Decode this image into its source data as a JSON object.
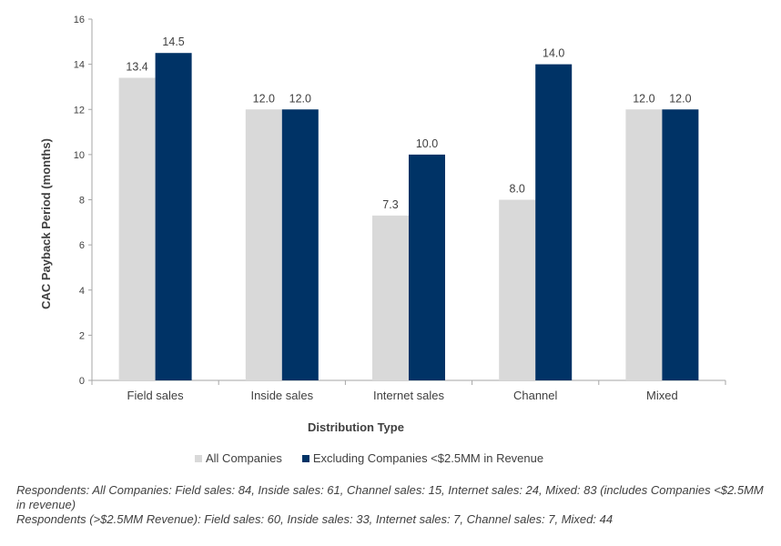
{
  "chart_data": {
    "type": "bar",
    "categories": [
      "Field sales",
      "Inside sales",
      "Internet sales",
      "Channel",
      "Mixed"
    ],
    "series": [
      {
        "name": "All Companies",
        "color": "#d9d9d9",
        "values": [
          13.4,
          12.0,
          7.3,
          8.0,
          12.0
        ],
        "labels": [
          "13.4",
          "12.0",
          "7.3",
          "8.0",
          "12.0"
        ]
      },
      {
        "name": "Excluding Companies <$2.5MM in Revenue",
        "color": "#003366",
        "values": [
          14.5,
          12.0,
          10.0,
          14.0,
          12.0
        ],
        "labels": [
          "14.5",
          "12.0",
          "10.0",
          "14.0",
          "12.0"
        ]
      }
    ],
    "xlabel": "Distribution Type",
    "ylabel": "CAC Payback Period (months)",
    "ylim": [
      0,
      16
    ],
    "yticks": [
      "0",
      "2",
      "4",
      "6",
      "8",
      "10",
      "12",
      "14",
      "16"
    ],
    "grid": false,
    "legend_position": "bottom"
  },
  "notes": [
    "Respondents: All Companies: Field sales: 84, Inside sales: 61, Channel sales: 15, Internet sales: 24, Mixed: 83 (includes Companies <$2.5MM in revenue)",
    "Respondents (>$2.5MM Revenue): Field sales: 60, Inside sales: 33, Internet sales: 7, Channel sales: 7, Mixed: 44"
  ]
}
